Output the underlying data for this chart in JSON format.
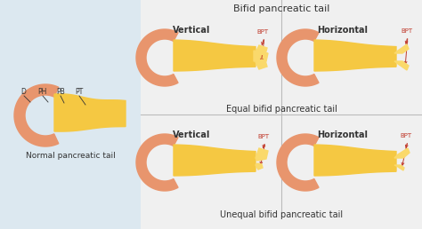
{
  "bg_left": "#dce8f0",
  "bg_right": "#f0f0f0",
  "orange": "#e8956d",
  "yellow": "#f5c842",
  "yellow_light": "#fad96b",
  "red_annot": "#c0392b",
  "text_dark": "#333333",
  "title_main": "Bifid pancreatic tail",
  "title_equal": "Equal bifid pancreatic tail",
  "title_unequal": "Unequal bifid pancreatic tail",
  "label_normal": "Normal pancreatic tail",
  "label_d": "D",
  "label_ph": "PH",
  "label_pb": "PB",
  "label_pt": "PT",
  "label_bpt": "BPT",
  "label_vertical": "Vertical",
  "label_horizontal": "Horizontal",
  "divider_color": "#bbbbbb",
  "line_sep": 129
}
